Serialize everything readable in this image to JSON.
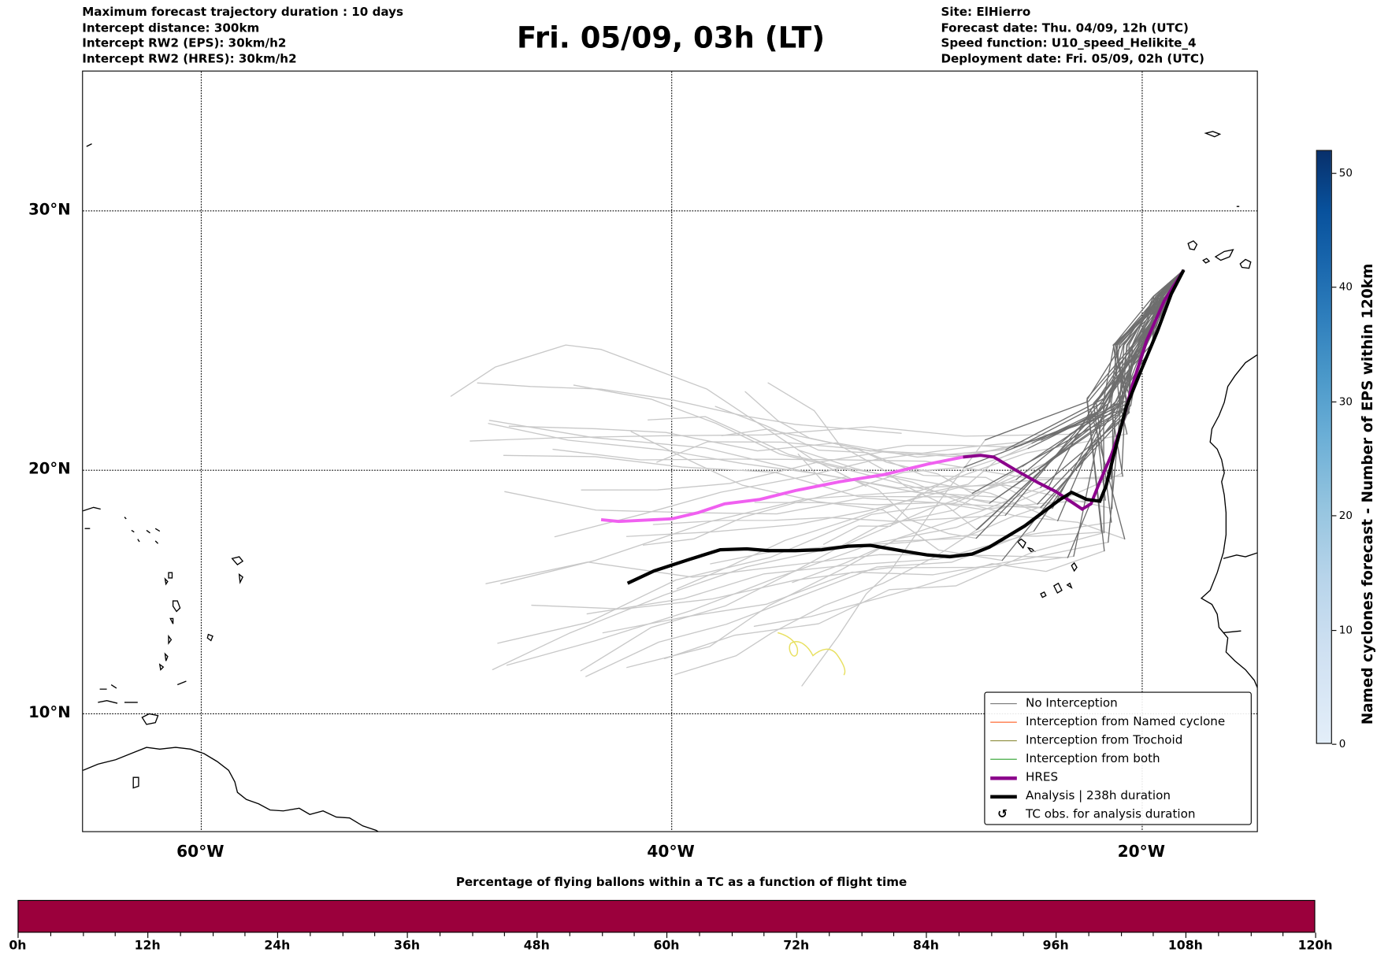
{
  "header": {
    "left_lines": [
      "Maximum forecast trajectory duration : 10 days",
      "Intercept distance: 300km",
      "Intercept RW2 (EPS):  30km/h2",
      "Intercept RW2 (HRES): 30km/h2"
    ],
    "title": "Fri. 05/09, 03h (LT)",
    "right_lines": [
      "Site: ElHierro",
      "Forecast date: Thu. 04/09, 12h (UTC)",
      "Speed function: U10_speed_Helikite_4",
      "Deployment date: Fri. 05/09, 02h (UTC)"
    ]
  },
  "map": {
    "lat_labels": [
      "30°N",
      "20°N",
      "10°N"
    ],
    "lon_labels": [
      "60°W",
      "40°W",
      "20°W"
    ],
    "colors": {
      "no_interception": "#777777",
      "named_cyclone": "#ff5a1f",
      "trochoid": "#8a8a3a",
      "both": "#2ca02c",
      "hres": "#8b008b",
      "hres_early": "#f060f0",
      "analysis": "#000000",
      "tc_obs": "#e8e060"
    }
  },
  "legend": {
    "items": [
      {
        "label": "No Interception",
        "icon": "gray-line"
      },
      {
        "label": "Interception from Named cyclone",
        "icon": "orange-line"
      },
      {
        "label": "Interception from Trochoid",
        "icon": "olive-line"
      },
      {
        "label": "Interception from both",
        "icon": "green-line"
      },
      {
        "label": "HRES",
        "icon": "purple-thick-line"
      },
      {
        "label": "Analysis | 238h duration",
        "icon": "black-thick-line"
      },
      {
        "label": "TC obs. for analysis duration",
        "icon": "cyclone-symbol",
        "symbol": "↺"
      }
    ]
  },
  "colorbar": {
    "title": "Named cyclones forecast - Number of EPS within 120km",
    "ticks": [
      "0",
      "10",
      "20",
      "30",
      "40",
      "50"
    ],
    "range": [
      0,
      52
    ]
  },
  "time_bar": {
    "title": "Percentage of flying ballons within a TC as a function of flight time",
    "ticks": [
      "0h",
      "12h",
      "24h",
      "36h",
      "48h",
      "60h",
      "72h",
      "84h",
      "96h",
      "108h",
      "120h"
    ],
    "fill_color": "#9b003c"
  }
}
